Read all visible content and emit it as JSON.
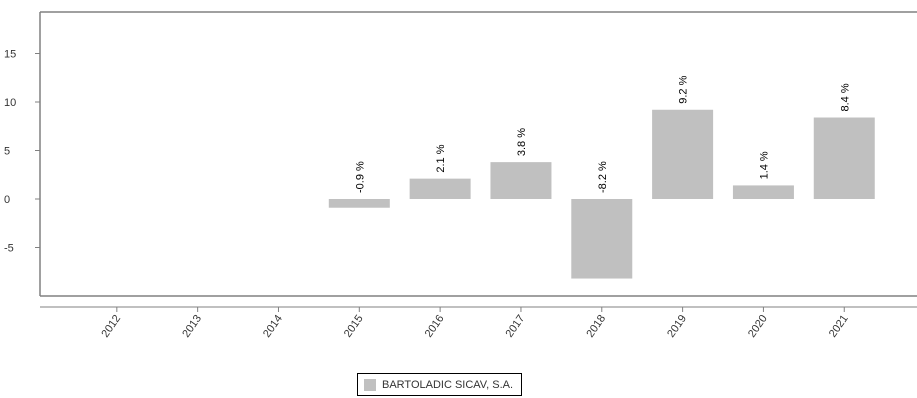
{
  "chart_data": {
    "type": "bar",
    "categories": [
      "2012",
      "2013",
      "2014",
      "2015",
      "2016",
      "2017",
      "2018",
      "2019",
      "2020",
      "2021"
    ],
    "series": [
      {
        "name": "BARTOLADIC SICAV, S.A.",
        "values": [
          null,
          null,
          null,
          -0.9,
          2.1,
          3.8,
          -8.2,
          9.2,
          1.4,
          8.4
        ],
        "labels": [
          "",
          "",
          "",
          "-0.9 %",
          "2.1 %",
          "3.8 %",
          "-8.2 %",
          "9.2 %",
          "1.4 %",
          "8.4 %"
        ]
      }
    ],
    "ylim": [
      -10,
      19
    ],
    "yticks": [
      15,
      10,
      5,
      0,
      -5
    ],
    "grid": false,
    "legend_position": "bottom-center"
  },
  "colors": {
    "bar": "#c0c0c0",
    "axis": "#808080"
  }
}
